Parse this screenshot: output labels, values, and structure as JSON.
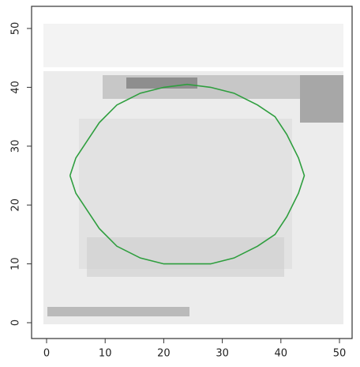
{
  "chart_data": {
    "type": "line",
    "series": [
      {
        "color": "#2e9e3e",
        "x": [
          4,
          5,
          7,
          9,
          12,
          16,
          20,
          24,
          28,
          32,
          36,
          39,
          41,
          43,
          44,
          43,
          41,
          39,
          36,
          32,
          28,
          24,
          20,
          16,
          12,
          9,
          7,
          5,
          4
        ],
        "values": [
          25,
          28,
          31,
          34,
          37,
          39,
          40,
          40.5,
          40,
          39,
          37,
          35,
          32,
          28,
          25,
          22,
          18,
          15,
          13,
          11,
          10,
          10,
          10,
          11,
          13,
          16,
          19,
          22,
          25
        ]
      }
    ],
    "xlim": [
      0,
      50
    ],
    "ylim": [
      0,
      50
    ],
    "xticks": [
      0,
      10,
      20,
      30,
      40,
      50
    ],
    "yticks": [
      0,
      10,
      20,
      30,
      40,
      50
    ]
  }
}
